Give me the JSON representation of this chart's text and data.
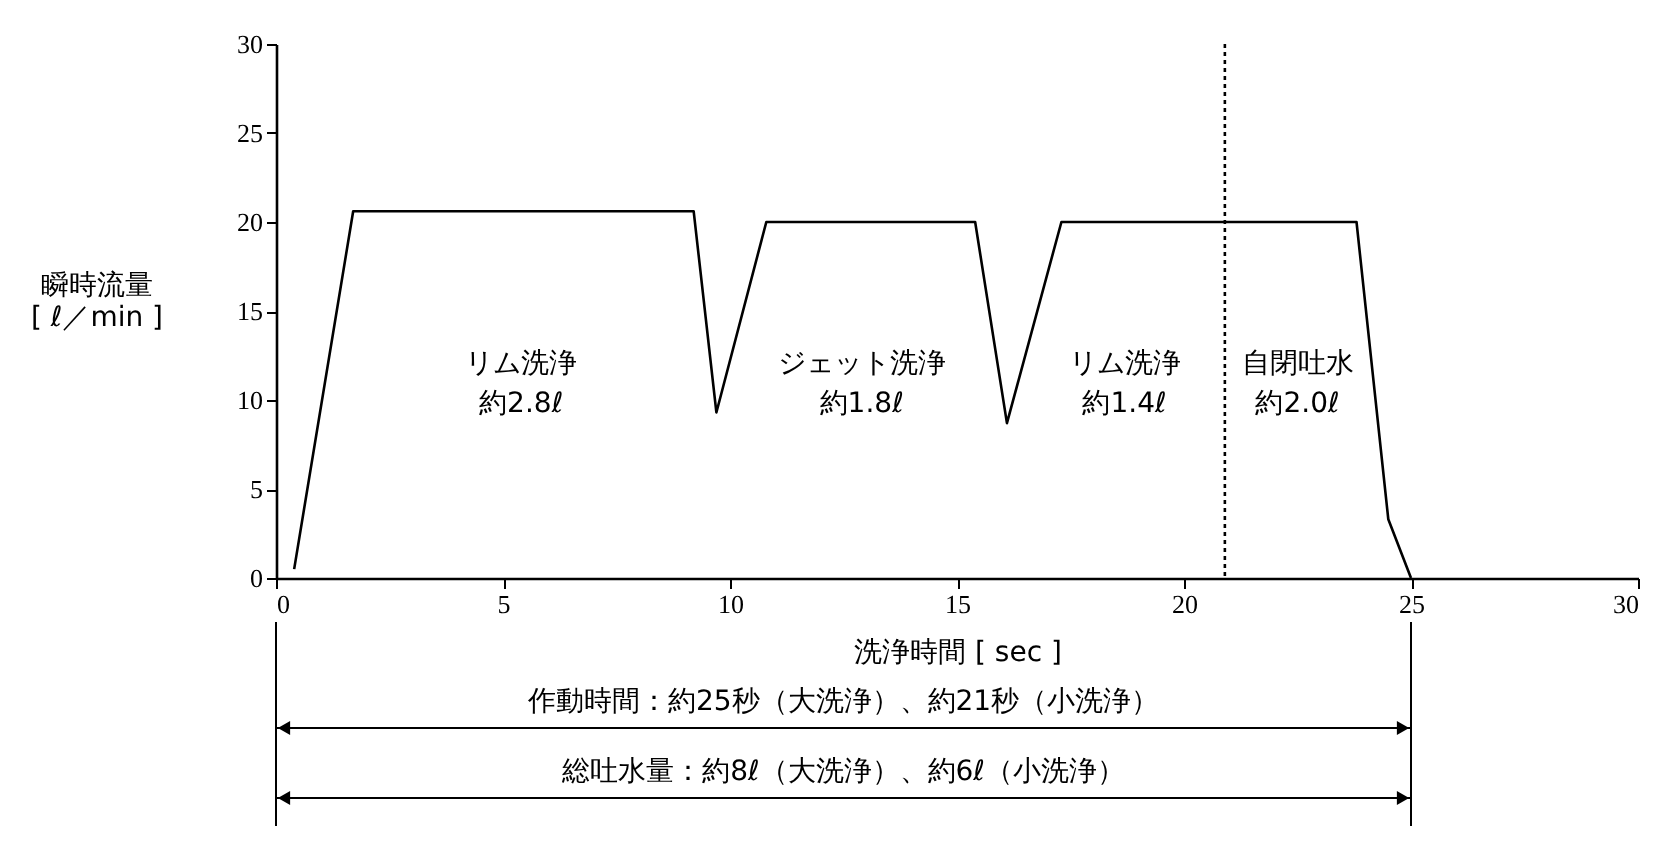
{
  "chart_data": {
    "type": "line",
    "xlabel": "洗浄時間 [ sec ]",
    "ylabel": "瞬時流量\n[ ℓ／min ]",
    "xlim": [
      0,
      30
    ],
    "xticks": [
      0,
      5,
      10,
      15,
      20,
      25,
      30
    ],
    "ylim": [
      0,
      30
    ],
    "yticks": [
      0,
      5,
      10,
      15,
      20,
      25,
      30
    ],
    "grid": false,
    "x": [
      0.4,
      1.7,
      9.2,
      9.7,
      10.8,
      15.4,
      16.1,
      17.3,
      23.8,
      24.5,
      25.0
    ],
    "series": [
      {
        "color": "#000000",
        "line_style": "solid",
        "values": [
          0.5,
          20.6,
          20.6,
          9.3,
          20.0,
          20.0,
          8.7,
          20.0,
          20.0,
          3.3,
          0
        ]
      }
    ],
    "ref_lines": [
      {
        "axis": "x",
        "value": 20.9,
        "line_style": "dotted",
        "color": "#000000"
      }
    ],
    "annotations": [
      "リム洗浄",
      "約2.8ℓ",
      "ジェット洗浄",
      "約1.8ℓ",
      "リム洗浄",
      "約1.4ℓ",
      "自閉吐水",
      "約2.0ℓ",
      "作動時間：約25秒（大洗浄）、約21秒（小洗浄）",
      "総吐水量：約8ℓ（大洗浄）、約6ℓ（小洗浄）"
    ]
  }
}
